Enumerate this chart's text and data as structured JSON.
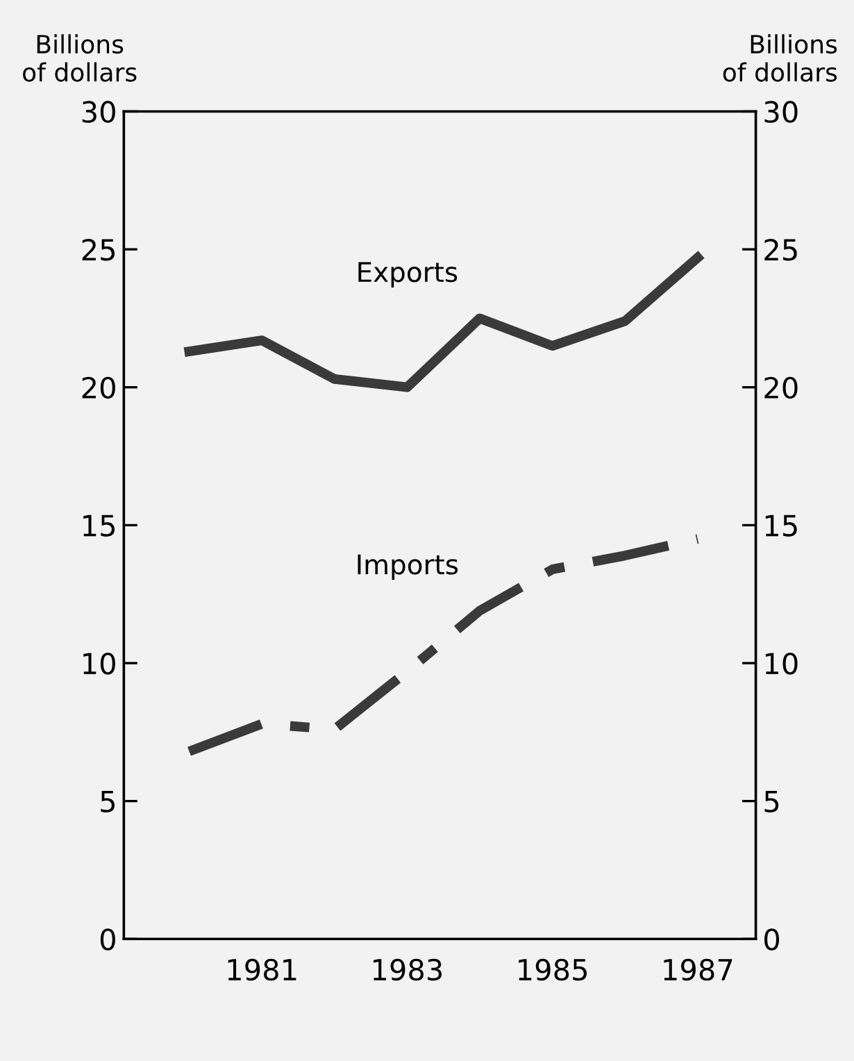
{
  "chart_data": {
    "type": "line",
    "ylabel": "Billions\nof dollars",
    "y2label": "Billions\nof dollars",
    "x": [
      1980,
      1981,
      1982,
      1983,
      1984,
      1985,
      1986,
      1987
    ],
    "xlim": [
      1979.1,
      1987.8
    ],
    "xticks": [
      1981,
      1983,
      1985,
      1987
    ],
    "ylim": [
      0,
      30
    ],
    "yticks": [
      0,
      5,
      10,
      15,
      20,
      25,
      30
    ],
    "y2lim": [
      0,
      30
    ],
    "y2ticks": [
      0,
      5,
      10,
      15,
      20,
      25,
      30
    ],
    "grid": false,
    "legend": false,
    "marker": "none",
    "series": [
      {
        "name": "Exports",
        "color": "#3a3a3a",
        "line_style": "solid",
        "values": [
          21.3,
          21.7,
          20.3,
          20.0,
          22.5,
          21.5,
          22.4,
          24.7
        ]
      },
      {
        "name": "Imports",
        "color": "#3a3a3a",
        "line_style": "dashdot",
        "values": [
          6.8,
          7.8,
          7.6,
          9.7,
          11.9,
          13.4,
          13.9,
          14.5
        ]
      }
    ]
  }
}
